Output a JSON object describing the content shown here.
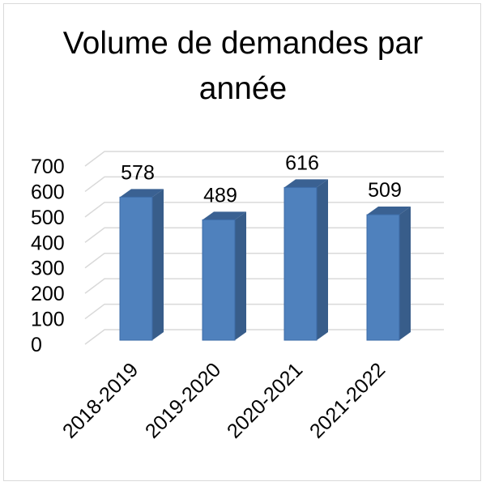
{
  "chart_data": {
    "type": "bar",
    "style": "3d-column",
    "title_lines": [
      "Volume de demandes par",
      "année"
    ],
    "categories": [
      "2018-2019",
      "2019-2020",
      "2020-2021",
      "2021-2022"
    ],
    "values": [
      578,
      489,
      616,
      509
    ],
    "data_labels": [
      "578",
      "489",
      "616",
      "509"
    ],
    "y_ticks": [
      "0",
      "100",
      "200",
      "300",
      "400",
      "500",
      "600",
      "700"
    ],
    "ylim": [
      0,
      700
    ],
    "grid": true,
    "legend": "none",
    "colors": {
      "bar_front": "#4f81bd",
      "bar_side": "#385d8a",
      "bar_top": "#3a6192",
      "gridline": "#d9d9d9"
    }
  }
}
